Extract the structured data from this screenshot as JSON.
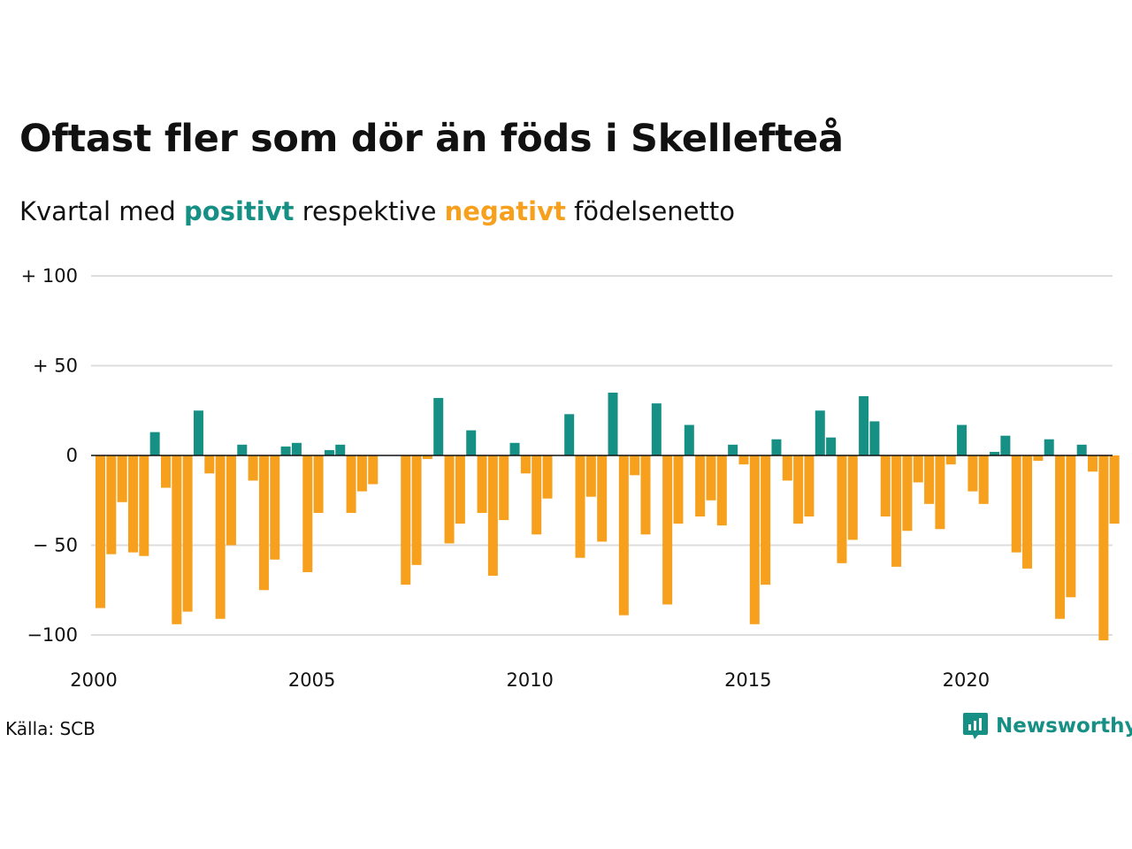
{
  "title": "Oftast fler som dör än föds i Skellefteå",
  "subtitle": {
    "prefix": "Kvartal med",
    "positive": "positivt",
    "middle": "respektive",
    "negative": "negativt",
    "suffix": "födelsenetto"
  },
  "source": "Källa: SCB",
  "brand": "Newsworthy",
  "colors": {
    "positive": "#168f84",
    "negative": "#f6a01d",
    "grid": "#dddddd",
    "zero_line": "#111111"
  },
  "chart_data": {
    "type": "bar",
    "title": "Oftast fler som dör än föds i Skellefteå",
    "subtitle": "Kvartal med positivt respektive negativt födelsenetto",
    "x_start": "2000-Q1",
    "x_end": "2023-Q2",
    "x_ticks": [
      "2000",
      "2005",
      "2010",
      "2015",
      "2020"
    ],
    "y_ticks": [
      {
        "value": 100,
        "label": "+ 100"
      },
      {
        "value": 50,
        "label": "+  50"
      },
      {
        "value": 0,
        "label": "0"
      },
      {
        "value": -50,
        "label": "− 50"
      },
      {
        "value": -100,
        "label": "−100"
      }
    ],
    "ylim": [
      -110,
      100
    ],
    "grid": true,
    "series": [
      {
        "values": [
          -85,
          -55,
          -26,
          -54,
          -56,
          13,
          -18,
          -94,
          -87,
          25,
          -10,
          -91,
          -50,
          6,
          -14,
          -75,
          -58,
          5,
          7,
          -65,
          -32,
          3,
          6,
          -32,
          -20,
          -16,
          0,
          0,
          -72,
          -61,
          -2,
          32,
          -49,
          -38,
          14,
          -32,
          -67,
          -36,
          7,
          -10,
          -44,
          -24,
          0,
          23,
          -57,
          -23,
          -48,
          35,
          -89,
          -11,
          -44,
          29,
          -83,
          -38,
          17,
          -34,
          -25,
          -39,
          6,
          -5,
          -94,
          -72,
          9,
          -14,
          -38,
          -34,
          25,
          10,
          -60,
          -47,
          33,
          19,
          -34,
          -62,
          -42,
          -15,
          -27,
          -41,
          -5,
          17,
          -20,
          -27,
          2,
          11,
          -54,
          -63,
          -3,
          9,
          -91,
          -79,
          6,
          -9,
          -103,
          -38
        ]
      }
    ]
  }
}
